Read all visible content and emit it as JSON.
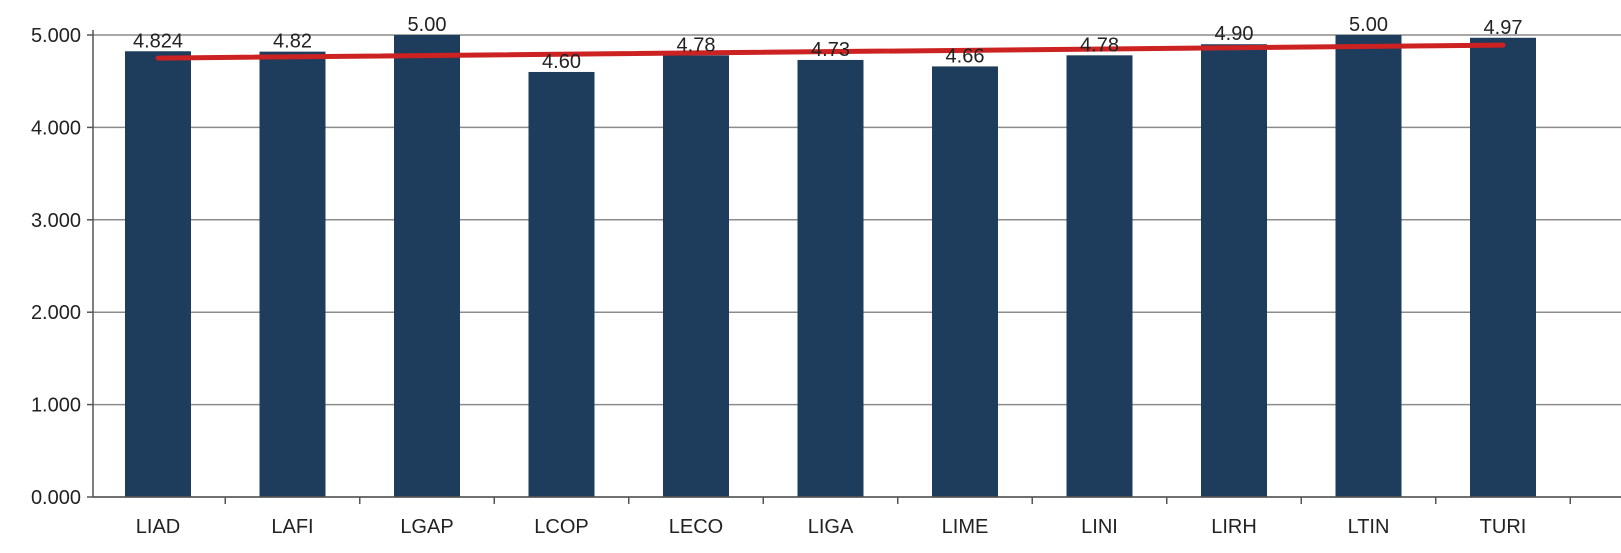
{
  "chart_data": {
    "type": "bar",
    "categories": [
      "LIAD",
      "LAFI",
      "LGAP",
      "LCOP",
      "LECO",
      "LIGA",
      "LIME",
      "LINI",
      "LIRH",
      "LTIN",
      "TURI"
    ],
    "values": [
      4.824,
      4.82,
      5.0,
      4.6,
      4.78,
      4.73,
      4.66,
      4.78,
      4.9,
      5.0,
      4.97
    ],
    "data_labels": [
      "4.824",
      "4.82",
      "5.00",
      "4.60",
      "4.78",
      "4.73",
      "4.66",
      "4.78",
      "4.90",
      "5.00",
      "4.97"
    ],
    "trendline": {
      "start": 4.75,
      "end": 4.89
    },
    "yticks": [
      0,
      1,
      2,
      3,
      4,
      5
    ],
    "ytick_labels": [
      "0.000",
      "1.000",
      "2.000",
      "3.000",
      "4.000",
      "5.000"
    ],
    "ylim": [
      0,
      5
    ],
    "grid": true,
    "legend": "none",
    "colors": {
      "bar": "#1e3d5c",
      "trend": "#cc2222",
      "grid": "#8c8c8c",
      "axis": "#555555"
    },
    "title": "",
    "xlabel": "",
    "ylabel": ""
  }
}
